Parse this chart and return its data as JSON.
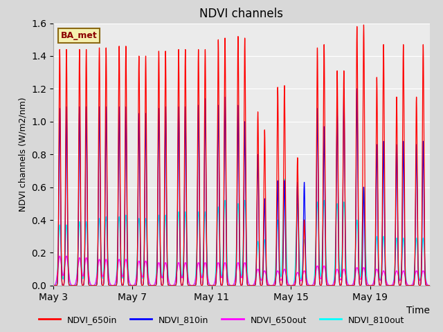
{
  "title": "NDVI channels",
  "xlabel": "Time",
  "ylabel": "NDVI channels (W/m2/nm)",
  "ylim": [
    0.0,
    1.6
  ],
  "yticks": [
    0.0,
    0.2,
    0.4,
    0.6,
    0.8,
    1.0,
    1.2,
    1.4,
    1.6
  ],
  "legend_label": "BA_met",
  "series_labels": [
    "NDVI_650in",
    "NDVI_810in",
    "NDVI_650out",
    "NDVI_810out"
  ],
  "series_colors": [
    "red",
    "blue",
    "magenta",
    "cyan"
  ],
  "plot_bg_color": "#ebebeb",
  "fig_bg_color": "#d8d8d8",
  "xtick_labels": [
    "May 3",
    "May 7",
    "May 11",
    "May 15",
    "May 19"
  ],
  "num_days": 19,
  "red_peaks": [
    1.44,
    1.44,
    1.44,
    1.44,
    1.45,
    1.45,
    1.46,
    1.46,
    1.4,
    1.4,
    1.43,
    1.43,
    1.44,
    1.44,
    1.44,
    1.44,
    1.5,
    1.51,
    1.52,
    1.51,
    1.06,
    0.95,
    1.21,
    1.22,
    0.78,
    0.4,
    1.45,
    1.47,
    1.31,
    1.31,
    1.58,
    1.59,
    1.27,
    1.47,
    1.15,
    1.47,
    1.15,
    1.47
  ],
  "blue_peaks": [
    1.08,
    1.09,
    1.09,
    1.09,
    1.09,
    1.09,
    1.09,
    1.09,
    1.05,
    1.05,
    1.08,
    1.09,
    1.09,
    1.09,
    1.1,
    1.14,
    1.1,
    1.15,
    1.1,
    1.0,
    0.8,
    0.53,
    0.64,
    0.64,
    0.63,
    0.63,
    1.08,
    0.97,
    1.08,
    1.2,
    1.2,
    0.6,
    0.86,
    0.88,
    0.86,
    0.88,
    0.86,
    0.88
  ],
  "magenta_peaks": [
    0.18,
    0.18,
    0.17,
    0.17,
    0.16,
    0.16,
    0.16,
    0.16,
    0.15,
    0.15,
    0.14,
    0.14,
    0.14,
    0.14,
    0.14,
    0.14,
    0.14,
    0.14,
    0.14,
    0.14,
    0.1,
    0.09,
    0.09,
    0.1,
    0.08,
    0.09,
    0.12,
    0.12,
    0.1,
    0.1,
    0.11,
    0.11,
    0.1,
    0.09,
    0.09,
    0.09,
    0.09,
    0.09
  ],
  "cyan_peaks": [
    0.37,
    0.37,
    0.39,
    0.39,
    0.41,
    0.42,
    0.42,
    0.43,
    0.41,
    0.41,
    0.43,
    0.43,
    0.45,
    0.45,
    0.45,
    0.45,
    0.48,
    0.52,
    0.5,
    0.52,
    0.27,
    0.28,
    0.4,
    0.65,
    0.5,
    0.28,
    0.51,
    0.52,
    0.5,
    0.51,
    0.4,
    0.6,
    0.3,
    0.3,
    0.29,
    0.29,
    0.29,
    0.29
  ]
}
